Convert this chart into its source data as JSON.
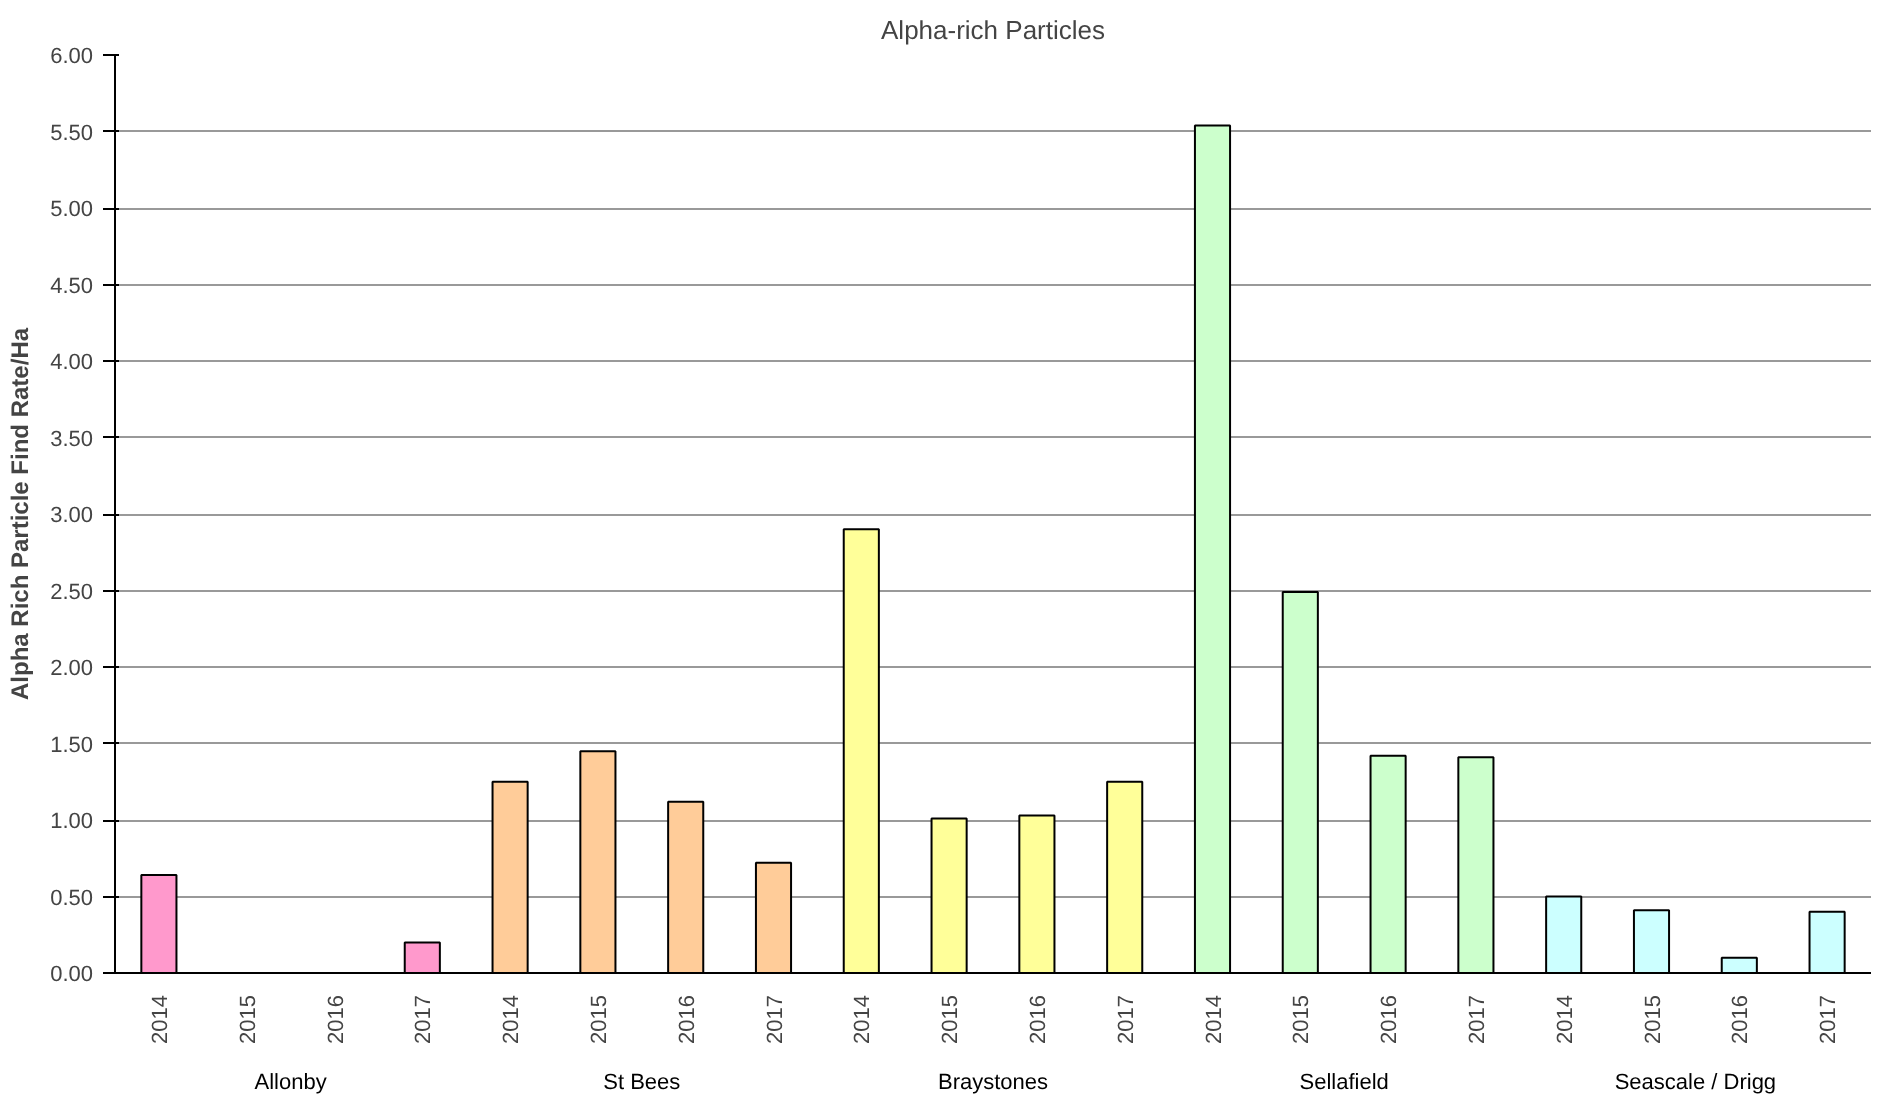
{
  "chart_data": {
    "type": "bar",
    "title": "Alpha-rich Particles",
    "ylabel": "Alpha Rich Particle Find Rate/Ha",
    "categories": [
      "2014",
      "2015",
      "2016",
      "2017",
      "2014",
      "2015",
      "2016",
      "2017",
      "2014",
      "2015",
      "2016",
      "2017",
      "2014",
      "2015",
      "2016",
      "2017",
      "2014",
      "2015",
      "2016",
      "2017"
    ],
    "values": [
      0.64,
      null,
      null,
      0.2,
      1.25,
      1.45,
      1.12,
      0.72,
      2.9,
      1.01,
      1.03,
      1.25,
      5.54,
      2.49,
      1.42,
      1.41,
      0.5,
      0.41,
      0.1,
      0.4
    ],
    "colors": [
      "#ff99cc",
      "#ff99cc",
      "#ff99cc",
      "#ff99cc",
      "#ffcc99",
      "#ffcc99",
      "#ffcc99",
      "#ffcc99",
      "#ffff99",
      "#ffff99",
      "#ffff99",
      "#ffff99",
      "#ccffcc",
      "#ccffcc",
      "#ccffcc",
      "#ccffcc",
      "#ccffff",
      "#ccffff",
      "#ccffff",
      "#ccffff"
    ],
    "annotations": [
      "Allonby",
      "St Bees",
      "Braystones",
      "Sellafield",
      "Seascale / Drigg"
    ],
    "ylim": [
      0,
      6
    ],
    "yticks": [
      {
        "value": 0,
        "label": "0.00"
      },
      {
        "value": 0.5,
        "label": "0.50"
      },
      {
        "value": 1,
        "label": "1.00"
      },
      {
        "value": 1.5,
        "label": "1.50"
      },
      {
        "value": 2,
        "label": "2.00"
      },
      {
        "value": 2.5,
        "label": "2.50"
      },
      {
        "value": 3,
        "label": "3.00"
      },
      {
        "value": 3.5,
        "label": "3.50"
      },
      {
        "value": 4,
        "label": "4.00"
      },
      {
        "value": 4.5,
        "label": "4.50"
      },
      {
        "value": 5,
        "label": "5.00"
      },
      {
        "value": 5.5,
        "label": "5.50"
      },
      {
        "value": 6,
        "label": "6.00"
      }
    ],
    "grid": "y"
  }
}
